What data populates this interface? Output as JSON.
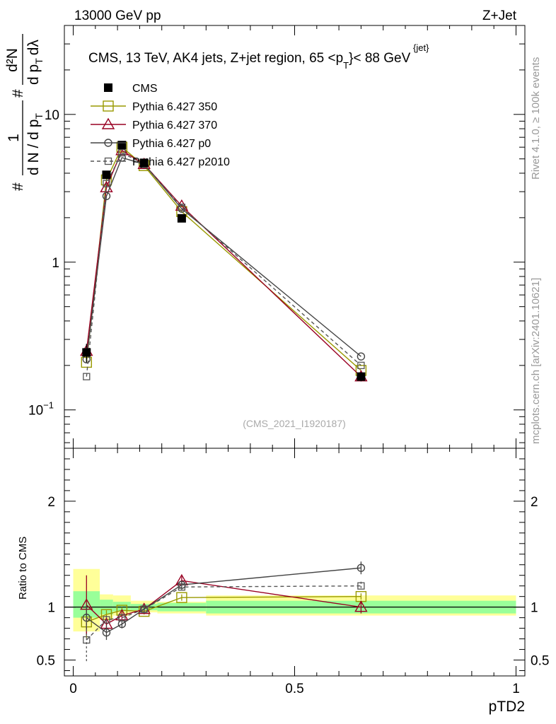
{
  "header": {
    "left": "13000 GeV pp",
    "right": "Z+Jet",
    "title_main": "CMS, 13 TeV, AK4 jets, Z+jet region, 65 <p",
    "title_sup": "{jet}",
    "title_sub": "T",
    "title_end": "}< 88 GeV"
  },
  "side_labels": {
    "rivet": "Rivet 4.1.0, ≥ 100k events",
    "mcplots": "mcplots.cern.ch [arXiv:2401.10621]"
  },
  "watermark": "(CMS_2021_I1920187)",
  "ylabel_main": {
    "num": "1",
    "hash": "#",
    "den": "d N / d p",
    "den_sub": "T",
    "num2": "d²N",
    "den2a": "d p",
    "den2_sub": "T",
    "den2b": "dλ"
  },
  "ylabel_ratio": "Ratio to CMS",
  "xlabel": "pTD2",
  "colors": {
    "cms": "#000000",
    "p350": "#999900",
    "p370": "#990022",
    "p0": "#444444",
    "p2010": "#555555",
    "band_green": "#99ff99",
    "band_yellow": "#ffff99"
  },
  "chart_data": {
    "type": "line",
    "title": "CMS, 13 TeV, AK4 jets, Z+jet region, 65 <p_T^{jet}< 88 GeV",
    "xlabel": "pTD2",
    "ylabel": "1/dN/dpT #d2N/dpT dlambda",
    "x_range": [
      -0.02,
      1.02
    ],
    "y_log_range": [
      0.055,
      40
    ],
    "ratio_range": [
      0.35,
      2.5
    ],
    "x_ticks": [
      {
        "v": 0,
        "label": "0"
      },
      {
        "v": 0.5,
        "label": "0.5"
      },
      {
        "v": 1,
        "label": "1"
      }
    ],
    "y_ticks": [
      {
        "v": 0.1,
        "base": "10",
        "exp": "−1"
      },
      {
        "v": 1,
        "base": "1",
        "exp": ""
      },
      {
        "v": 10,
        "base": "10",
        "exp": ""
      }
    ],
    "ratio_ticks": [
      {
        "v": 0.5,
        "label": "0.5"
      },
      {
        "v": 1,
        "label": "1"
      },
      {
        "v": 2,
        "label": "2"
      }
    ],
    "bins": [
      {
        "lo": 0.0,
        "hi": 0.06
      },
      {
        "lo": 0.06,
        "hi": 0.09
      },
      {
        "lo": 0.09,
        "hi": 0.13
      },
      {
        "lo": 0.13,
        "hi": 0.19
      },
      {
        "lo": 0.19,
        "hi": 0.3
      },
      {
        "lo": 0.3,
        "hi": 1.0
      }
    ],
    "x": [
      0.03,
      0.075,
      0.11,
      0.16,
      0.245,
      0.65
    ],
    "cms": [
      0.245,
      3.9,
      6.2,
      4.7,
      1.98,
      0.168
    ],
    "cms_err": [
      0.035,
      0.25,
      0.3,
      0.2,
      0.1,
      0.012
    ],
    "band_green": [
      [
        0.9,
        1.15
      ],
      [
        0.93,
        1.07
      ],
      [
        0.96,
        1.05
      ],
      [
        0.97,
        1.03
      ],
      [
        0.96,
        1.04
      ],
      [
        0.94,
        1.06
      ]
    ],
    "band_yellow": [
      [
        0.77,
        1.36
      ],
      [
        0.88,
        1.12
      ],
      [
        0.92,
        1.11
      ],
      [
        0.95,
        1.06
      ],
      [
        0.94,
        1.05
      ],
      [
        0.92,
        1.11
      ]
    ],
    "series": [
      {
        "name": "Pythia 6.427 350",
        "key": "p350",
        "marker": "square",
        "dash": false,
        "values": [
          0.21,
          3.6,
          6.0,
          4.5,
          2.2,
          0.185
        ],
        "ratio": [
          0.86,
          0.93,
          0.97,
          0.96,
          1.09,
          1.1
        ],
        "ratio_err": [
          0.15,
          0.04,
          0.03,
          0.03,
          0.03,
          0.03
        ]
      },
      {
        "name": "Pythia 6.427 370",
        "key": "p370",
        "marker": "triangle",
        "dash": false,
        "values": [
          0.25,
          3.2,
          5.7,
          4.6,
          2.4,
          0.168
        ],
        "ratio": [
          1.02,
          0.84,
          0.92,
          0.98,
          1.25,
          1.0
        ],
        "ratio_err": [
          0.28,
          0.05,
          0.03,
          0.03,
          0.04,
          0.06
        ]
      },
      {
        "name": "Pythia 6.427 p0",
        "key": "p0",
        "marker": "circle",
        "dash": false,
        "values": [
          0.22,
          2.8,
          5.1,
          4.6,
          2.3,
          0.23
        ],
        "ratio": [
          0.9,
          0.76,
          0.84,
          0.98,
          1.21,
          1.37
        ],
        "ratio_err": [
          0.12,
          0.07,
          0.04,
          0.03,
          0.03,
          0.06
        ]
      },
      {
        "name": "Pythia 6.427 p2010",
        "key": "p2010",
        "marker": "square-small",
        "dash": true,
        "values": [
          0.168,
          3.4,
          5.5,
          4.6,
          2.35,
          0.2
        ],
        "ratio": [
          0.69,
          0.88,
          0.9,
          0.98,
          1.19,
          1.2
        ],
        "ratio_err": [
          0.22,
          0.04,
          0.03,
          0.03,
          0.03,
          0.04
        ]
      }
    ],
    "legend": [
      "CMS",
      "Pythia 6.427 350",
      "Pythia 6.427 370",
      "Pythia 6.427 p0",
      "Pythia 6.427 p2010"
    ],
    "legend_position": "top-left"
  }
}
